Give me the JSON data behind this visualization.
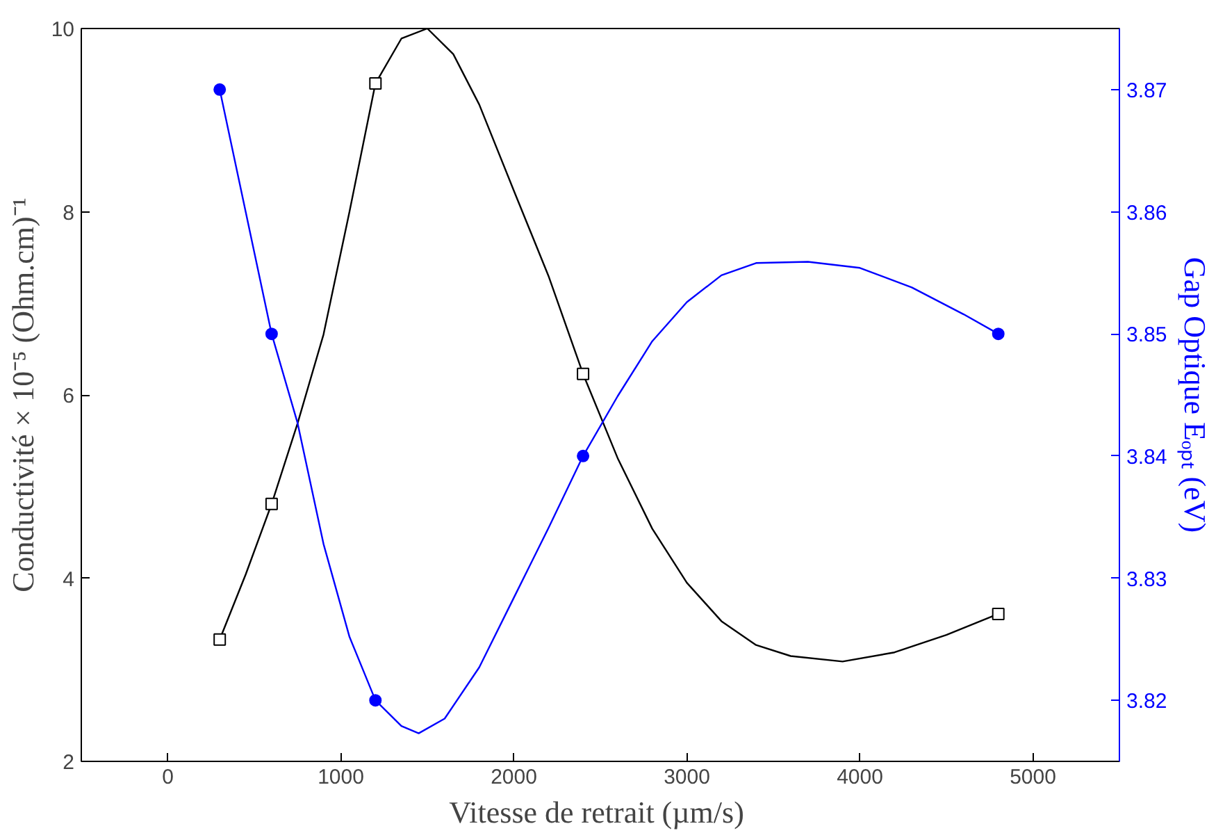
{
  "chart_data": {
    "type": "scatter",
    "xlabel": "Vitesse de retrait  (µm/s)",
    "ylabel": "Conductivité × 10⁻⁵ (Ohm.cm)⁻¹",
    "y2label": "Gap Optique Eₒₚₜ (eV)",
    "x": [
      300,
      600,
      1200,
      2400,
      4800
    ],
    "xlim": [
      -500,
      5500
    ],
    "xticks": [
      0,
      1000,
      2000,
      3000,
      4000,
      5000
    ],
    "ylim": [
      2,
      10
    ],
    "yticks": [
      2,
      4,
      6,
      8,
      10
    ],
    "y2lim": [
      3.815,
      3.875
    ],
    "y2ticks": [
      {
        "value": 3.82,
        "label": "3.82"
      },
      {
        "value": 3.83,
        "label": "3.83"
      },
      {
        "value": 3.84,
        "label": "3.84"
      },
      {
        "value": 3.85,
        "label": "3.85"
      },
      {
        "value": 3.86,
        "label": "3.86"
      },
      {
        "value": 3.87,
        "label": "3.87"
      }
    ],
    "grid": false,
    "series": [
      {
        "type": "line",
        "color": "#000000",
        "marker": "none",
        "x": [
          300,
          450,
          600,
          750,
          900,
          1050,
          1200,
          1350,
          1500,
          1650,
          1800,
          2000,
          2200,
          2400,
          2600,
          2800,
          3000,
          3200,
          3400,
          3600,
          3900,
          4200,
          4500,
          4800
        ],
        "values": [
          3.33,
          4.04,
          4.81,
          5.69,
          6.66,
          8.0,
          9.4,
          9.89,
          10.0,
          9.72,
          9.17,
          8.23,
          7.3,
          6.23,
          5.31,
          4.54,
          3.95,
          3.53,
          3.27,
          3.15,
          3.09,
          3.19,
          3.38,
          3.61
        ]
      },
      {
        "type": "line",
        "color": "#0000ff",
        "marker": "none",
        "axis": "y2",
        "x": [
          300,
          450,
          600,
          750,
          900,
          1050,
          1200,
          1350,
          1450,
          1600,
          1800,
          2000,
          2200,
          2400,
          2600,
          2800,
          3000,
          3200,
          3400,
          3700,
          4000,
          4300,
          4600,
          4800
        ],
        "values": [
          3.87,
          3.86,
          3.85,
          3.8427,
          3.8328,
          3.8252,
          3.82,
          3.8179,
          3.8173,
          3.8185,
          3.8227,
          3.8284,
          3.8341,
          3.84,
          3.8449,
          3.8494,
          3.8526,
          3.8548,
          3.8558,
          3.8559,
          3.8554,
          3.8538,
          3.8516,
          3.85
        ]
      },
      {
        "color": "#000000",
        "marker": "square",
        "values": [
          3.33,
          4.81,
          9.4,
          6.23,
          3.61
        ]
      },
      {
        "color": "#0000ff",
        "marker": "circle",
        "axis": "y2",
        "values": [
          3.87,
          3.85,
          3.82,
          3.84,
          3.85
        ]
      }
    ]
  }
}
